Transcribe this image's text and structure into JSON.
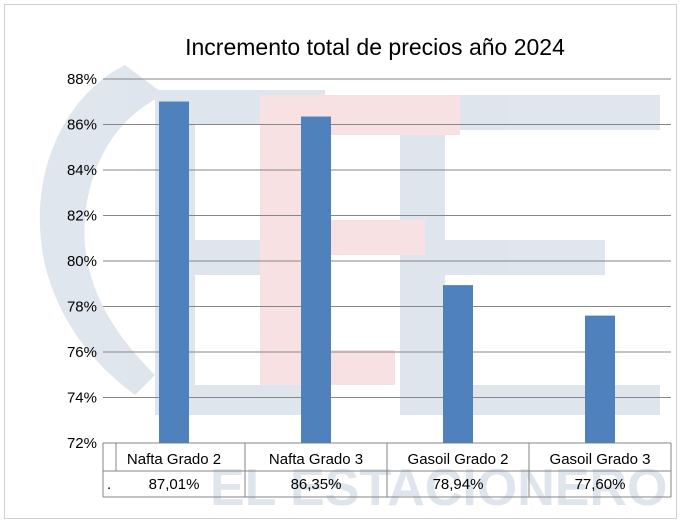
{
  "chart_data": {
    "type": "bar",
    "title": "Incremento total de precios año 2024",
    "categories": [
      "Nafta Grado 2",
      "Nafta Grado 3",
      "Gasoil Grado 2",
      "Gasoil Grado 3"
    ],
    "values": [
      87.01,
      86.35,
      78.94,
      77.6
    ],
    "value_labels": [
      "87,01%",
      "86,35%",
      "78,94%",
      "77,60%"
    ],
    "data_table_row_label": ".",
    "ylim": [
      72,
      88
    ],
    "yticks": [
      72,
      74,
      76,
      78,
      80,
      82,
      84,
      86,
      88
    ],
    "ytick_labels": [
      "72%",
      "74%",
      "76%",
      "78%",
      "80%",
      "82%",
      "84%",
      "86%",
      "88%"
    ],
    "grid": true,
    "legend": "none",
    "bar_color": "#4f81bd",
    "watermark_text": "EL ESTACIONERO",
    "watermark_colors": {
      "blue": "#c5d1e0",
      "red": "#f3c9cc"
    }
  }
}
